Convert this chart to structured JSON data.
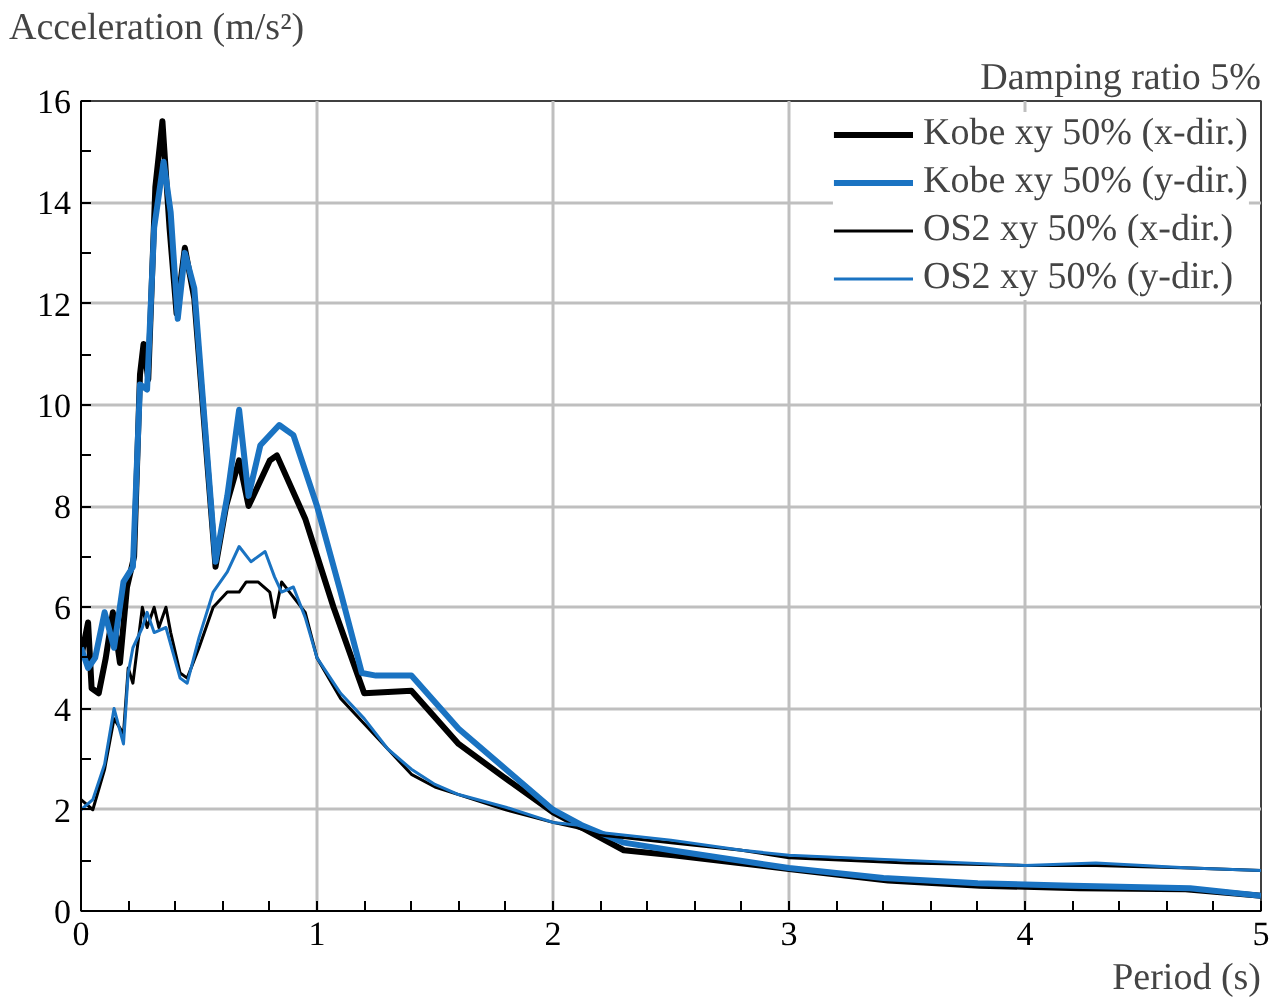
{
  "chart_data": {
    "type": "line",
    "xlabel": "Period (s)",
    "ylabel": "Acceleration (m/s²)",
    "annotations": [
      "Damping ratio 5%"
    ],
    "xlim": [
      0,
      5
    ],
    "ylim": [
      0,
      16
    ],
    "xticks": [
      0,
      1,
      2,
      3,
      4,
      5
    ],
    "yticks": [
      0,
      2,
      4,
      6,
      8,
      10,
      12,
      14,
      16
    ],
    "grid": true,
    "legend": "top right",
    "marker": "none",
    "line_style": "solid",
    "series": [
      {
        "name": "Kobe xy 50% (x-dir.)",
        "color": "#000000",
        "x": [
          0,
          0.03,
          0.045,
          0.075,
          0.105,
          0.135,
          0.165,
          0.195,
          0.225,
          0.25,
          0.265,
          0.285,
          0.315,
          0.345,
          0.375,
          0.405,
          0.44,
          0.48,
          0.57,
          0.615,
          0.67,
          0.71,
          0.8,
          0.83,
          0.95,
          1.07,
          1.2,
          1.4,
          1.6,
          1.79,
          2.0,
          2.12,
          2.3,
          2.51,
          3.0,
          3.42,
          3.81,
          4.23,
          4.68,
          5.0
        ],
        "values": [
          5.0,
          5.7,
          4.4,
          4.3,
          5.0,
          5.9,
          4.9,
          6.4,
          7.0,
          10.6,
          11.2,
          10.5,
          14.3,
          15.6,
          13.5,
          11.8,
          13.1,
          12.1,
          6.8,
          8.0,
          8.9,
          8.0,
          8.9,
          9.0,
          7.75,
          6.0,
          4.3,
          4.35,
          3.3,
          2.65,
          1.95,
          1.65,
          1.2,
          1.1,
          0.83,
          0.6,
          0.5,
          0.45,
          0.43,
          0.3
        ]
      },
      {
        "name": "Kobe xy 50% (y-dir.)",
        "color": "#1a73c2",
        "x": [
          0,
          0.03,
          0.06,
          0.1,
          0.14,
          0.18,
          0.22,
          0.25,
          0.28,
          0.31,
          0.35,
          0.38,
          0.41,
          0.44,
          0.48,
          0.57,
          0.62,
          0.67,
          0.71,
          0.76,
          0.84,
          0.9,
          1.0,
          1.1,
          1.19,
          1.25,
          1.4,
          1.6,
          1.8,
          2.0,
          2.12,
          2.3,
          2.5,
          3.0,
          3.4,
          3.8,
          4.2,
          4.7,
          5.0
        ],
        "values": [
          5.2,
          4.8,
          5.0,
          5.9,
          5.2,
          6.5,
          6.8,
          10.4,
          10.3,
          13.5,
          14.8,
          13.8,
          11.7,
          13.0,
          12.3,
          6.9,
          8.2,
          9.9,
          8.2,
          9.2,
          9.6,
          9.4,
          8.0,
          6.3,
          4.7,
          4.65,
          4.65,
          3.6,
          2.8,
          2.0,
          1.7,
          1.35,
          1.2,
          0.85,
          0.65,
          0.55,
          0.5,
          0.45,
          0.3
        ]
      },
      {
        "name": "OS2 xy 50% (x-dir.)",
        "color": "#000000",
        "x": [
          0,
          0.05,
          0.1,
          0.14,
          0.18,
          0.2,
          0.22,
          0.26,
          0.28,
          0.31,
          0.33,
          0.36,
          0.38,
          0.42,
          0.45,
          0.5,
          0.56,
          0.62,
          0.67,
          0.7,
          0.75,
          0.8,
          0.82,
          0.85,
          0.9,
          0.95,
          1.0,
          1.1,
          1.2,
          1.3,
          1.4,
          1.5,
          1.6,
          1.8,
          2.0,
          2.1,
          2.2,
          2.5,
          2.8,
          3.0,
          3.5,
          4.0,
          4.3,
          4.7,
          5.0
        ],
        "values": [
          2.2,
          2.0,
          2.8,
          3.8,
          3.5,
          4.8,
          4.5,
          6.0,
          5.6,
          6.0,
          5.6,
          6.0,
          5.5,
          4.7,
          4.6,
          5.2,
          6.0,
          6.3,
          6.3,
          6.5,
          6.5,
          6.3,
          5.8,
          6.5,
          6.2,
          5.9,
          5.0,
          4.2,
          3.7,
          3.2,
          2.7,
          2.45,
          2.3,
          2.0,
          1.75,
          1.65,
          1.5,
          1.35,
          1.2,
          1.05,
          0.95,
          0.9,
          0.9,
          0.85,
          0.8
        ]
      },
      {
        "name": "OS2 xy 50% (y-dir.)",
        "color": "#1a73c2",
        "x": [
          0,
          0.05,
          0.1,
          0.14,
          0.18,
          0.2,
          0.22,
          0.26,
          0.28,
          0.31,
          0.36,
          0.42,
          0.45,
          0.5,
          0.56,
          0.62,
          0.67,
          0.72,
          0.78,
          0.82,
          0.85,
          0.9,
          0.95,
          1.0,
          1.1,
          1.2,
          1.3,
          1.4,
          1.5,
          1.6,
          1.8,
          2.0,
          2.1,
          2.2,
          2.5,
          2.8,
          3.0,
          3.5,
          4.0,
          4.3,
          4.7,
          5.0
        ],
        "values": [
          2.0,
          2.2,
          2.9,
          4.0,
          3.3,
          4.7,
          5.2,
          5.6,
          5.9,
          5.5,
          5.6,
          4.6,
          4.5,
          5.4,
          6.3,
          6.7,
          7.2,
          6.9,
          7.1,
          6.6,
          6.3,
          6.4,
          5.8,
          5.0,
          4.3,
          3.8,
          3.2,
          2.8,
          2.5,
          2.3,
          2.05,
          1.75,
          1.7,
          1.55,
          1.4,
          1.2,
          1.1,
          1.0,
          0.9,
          0.95,
          0.85,
          0.8
        ]
      }
    ]
  }
}
